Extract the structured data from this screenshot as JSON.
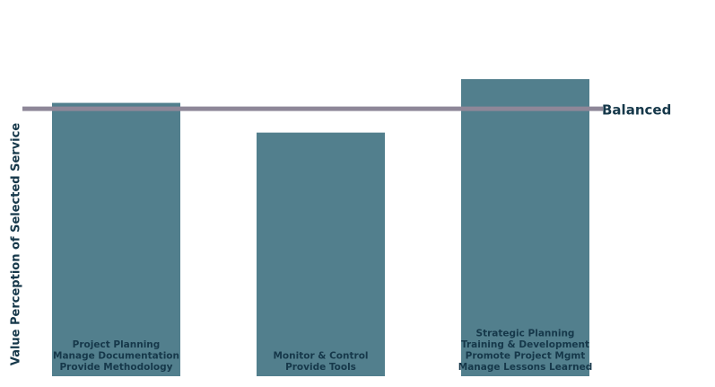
{
  "chart_data": {
    "type": "bar",
    "y_label": "Value Perception of Selected Service",
    "categories": [
      [
        "Project Planning",
        "Manage Documentation",
        "Provide Methodology"
      ],
      [
        "Monitor & Control",
        "Provide Tools"
      ],
      [
        "Strategic Planning",
        "Training & Development",
        "Promote Project Mgmt",
        "Manage Lessons Learned"
      ]
    ],
    "values": [
      92,
      82,
      100
    ],
    "color": "#527f8d",
    "ylim": [
      0,
      110
    ],
    "reference_line": {
      "value": 90,
      "label": "Balanced",
      "color": "#8e8798"
    }
  }
}
